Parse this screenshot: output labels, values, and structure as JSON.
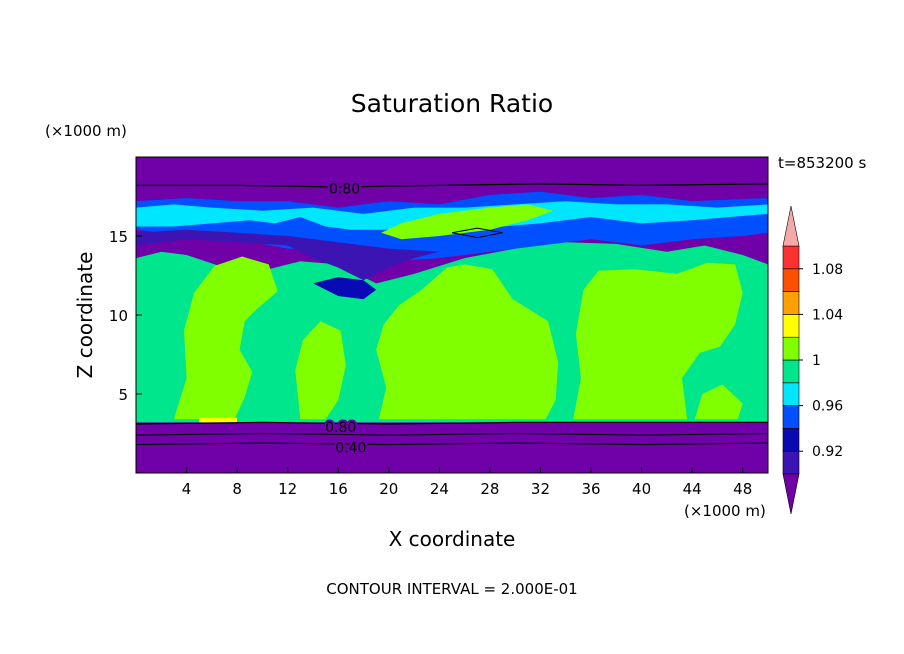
{
  "chart_data": {
    "type": "heatmap",
    "title": "Saturation Ratio",
    "xlabel": "X coordinate",
    "ylabel": "Z coordinate",
    "x_unit": "(×1000 m)",
    "y_unit": "(×1000 m)",
    "time_label": "t=853200 s",
    "footer": "CONTOUR INTERVAL = 2.000E-01",
    "xlim": [
      0,
      50
    ],
    "ylim": [
      0,
      20
    ],
    "x_ticks": [
      4,
      8,
      12,
      16,
      20,
      24,
      28,
      32,
      36,
      40,
      44,
      48
    ],
    "y_ticks": [
      5,
      10,
      15
    ],
    "contour_labels": [
      {
        "text": "0.80",
        "x": 16.5,
        "y": 18.0
      },
      {
        "text": "0.80",
        "x": 16.2,
        "y": 2.9
      },
      {
        "text": "0.40",
        "x": 17.0,
        "y": 1.6
      }
    ],
    "colorbar": {
      "levels": [
        0.9,
        0.92,
        0.94,
        0.96,
        0.98,
        1.0,
        1.02,
        1.04,
        1.06,
        1.08,
        1.1
      ],
      "tick_labels": [
        "0.92",
        "0.96",
        "1",
        "1.04",
        "1.08"
      ],
      "tick_values": [
        0.92,
        0.96,
        1.0,
        1.04,
        1.08
      ],
      "colors": [
        "#7000a8",
        "#3c14b4",
        "#0a0ab4",
        "#0050ff",
        "#00e6ff",
        "#00e68c",
        "#80ff00",
        "#ffff00",
        "#ffa000",
        "#ff5000",
        "#ff3030",
        "#f5a8a8"
      ]
    },
    "regions": {
      "low_layer": {
        "z_range": [
          0,
          3.2
        ],
        "class": "below 0.90"
      },
      "troposphere": {
        "z_range": [
          3.2,
          14
        ],
        "classes": [
          "0.98-1.00",
          "1.00-1.02"
        ]
      },
      "cirrus_band": {
        "z_range": [
          11,
          17.5
        ],
        "classes": [
          "0.90-0.98"
        ]
      },
      "upper_layer": {
        "z_range": [
          17.5,
          20
        ],
        "class": "below 0.90"
      }
    }
  }
}
